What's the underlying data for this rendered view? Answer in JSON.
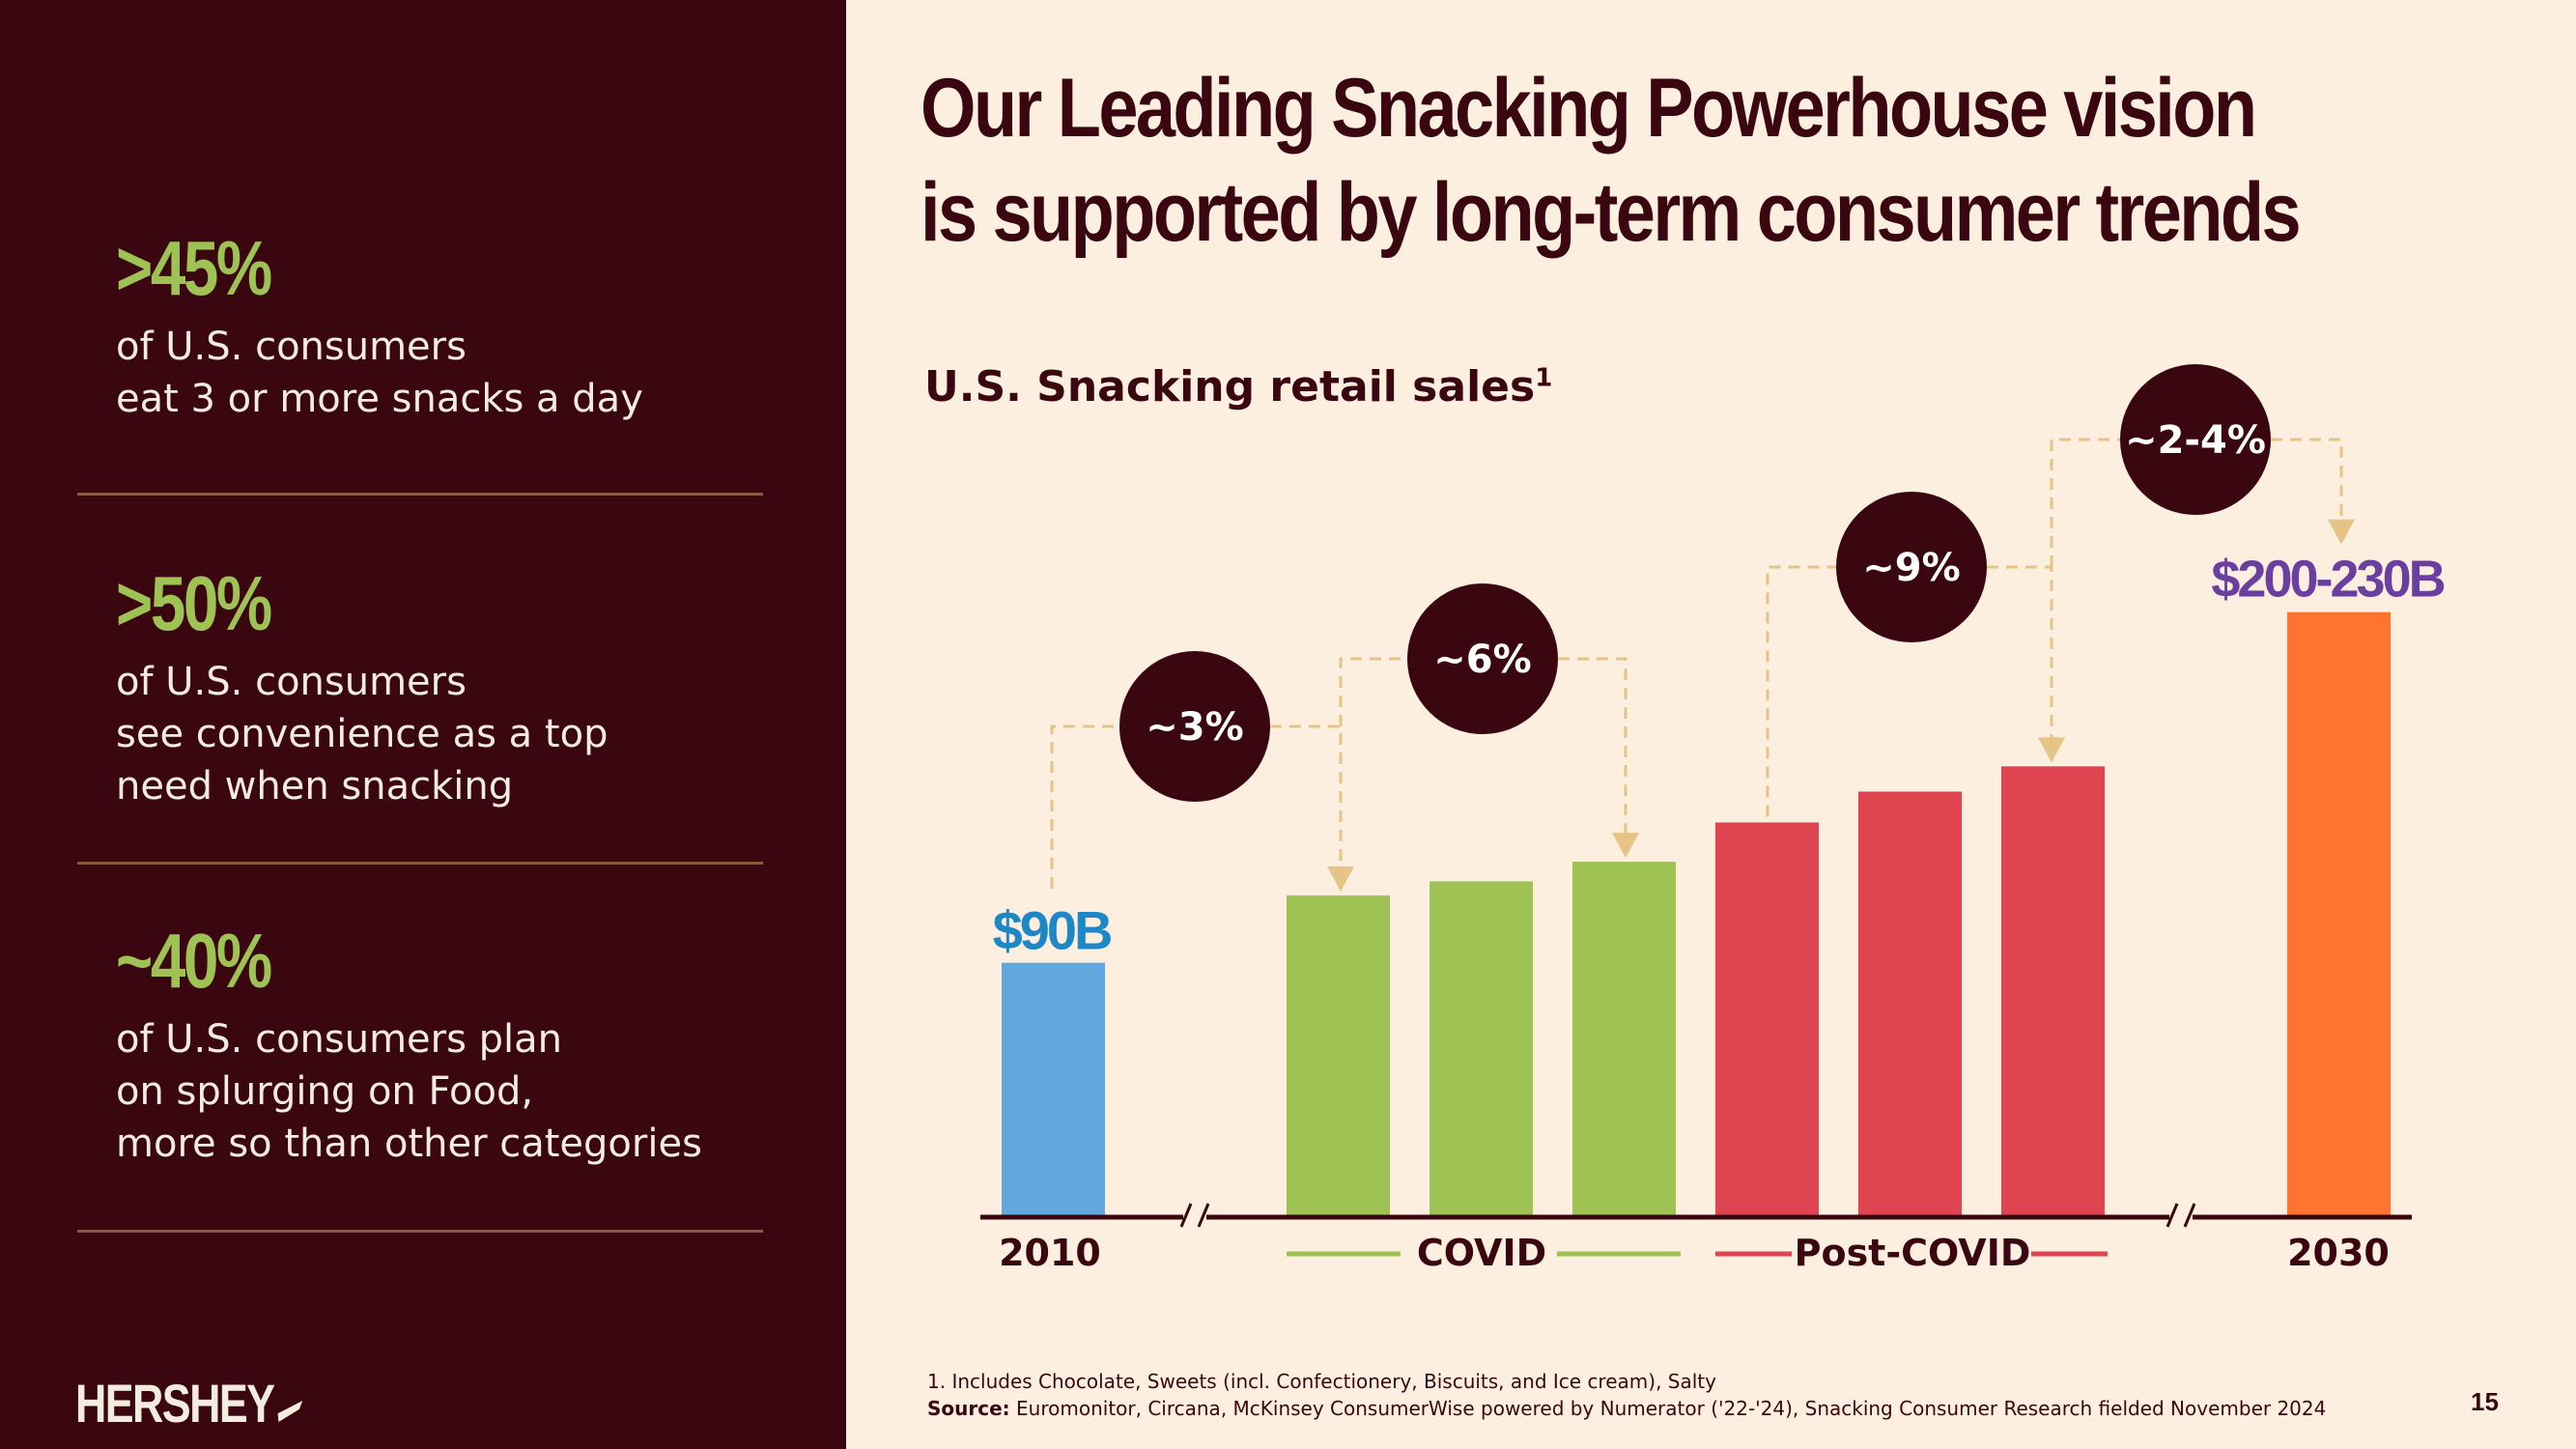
{
  "slide": {
    "title_lines": [
      "Our Leading Snacking Powerhouse vision",
      "is supported by long-term consumer trends"
    ],
    "subtitle": "U.S. Snacking retail sales",
    "subtitle_sup": "1",
    "page_number": "15",
    "logo": "HERSHEY"
  },
  "stats": [
    {
      "value": ">45%",
      "lines": [
        "of U.S. consumers",
        "eat 3 or more snacks a day"
      ]
    },
    {
      "value": ">50%",
      "lines": [
        "of U.S. consumers",
        "see convenience as a top",
        "need when snacking"
      ]
    },
    {
      "value": "~40%",
      "lines": [
        "of U.S. consumers plan",
        "on splurging on Food,",
        "more so than other categories"
      ]
    }
  ],
  "footnote": {
    "note": "1. Includes Chocolate, Sweets (incl. Confectionery, Biscuits, and Ice cream), Salty",
    "source_label": "Source:",
    "source_text": " Euromonitor, Circana, McKinsey ConsumerWise powered by Numerator ('22-'24), Snacking Consumer Research fielded November 2024"
  },
  "colors": {
    "blue": "#62a8df",
    "green": "#9fc254",
    "red": "#de4550",
    "orange": "#ff7430",
    "maroon": "#3a0710",
    "dash": "#e6c487",
    "purple": "#6b3fa0",
    "label_blue": "#1e88c7"
  },
  "chart_data": {
    "type": "bar",
    "bars": [
      {
        "group": "2010",
        "value": 90,
        "color": "blue",
        "label": "$90B"
      },
      {
        "group": "COVID",
        "value": 114,
        "color": "green"
      },
      {
        "group": "COVID",
        "value": 119,
        "color": "green"
      },
      {
        "group": "COVID",
        "value": 126,
        "color": "green"
      },
      {
        "group": "Post-COVID",
        "value": 140,
        "color": "red"
      },
      {
        "group": "Post-COVID",
        "value": 151,
        "color": "red"
      },
      {
        "group": "Post-COVID",
        "value": 160,
        "color": "red"
      },
      {
        "group": "2030",
        "value": 215,
        "color": "orange",
        "label": "$200-230B"
      }
    ],
    "x_labels": [
      "2010",
      "COVID",
      "Post-COVID",
      "2030"
    ],
    "growth_callouts": [
      {
        "label": "~3%",
        "from_bar": 0,
        "to_bar": 1
      },
      {
        "label": "~6%",
        "from_bar": 1,
        "to_bar": 3
      },
      {
        "label": "~9%",
        "from_bar": 4,
        "to_bar": 6
      },
      {
        "label": "~2-4%",
        "from_bar": 6,
        "to_bar": 7
      }
    ],
    "axis_breaks": 2,
    "ylim": [
      0,
      230
    ],
    "grid": false
  }
}
